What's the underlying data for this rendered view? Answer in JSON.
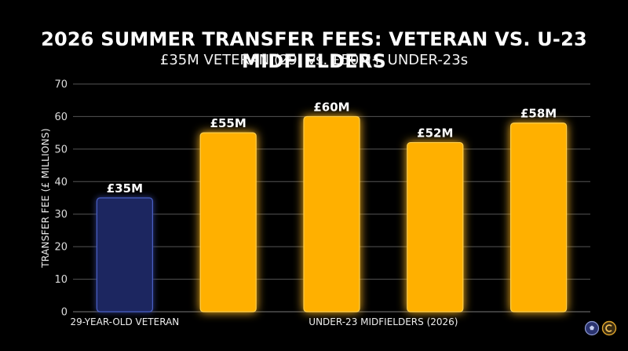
{
  "chart_data": {
    "type": "bar",
    "title": "2026 SUMMER TRANSFER FEES: VETERAN VS. U-23 MIDFIELDERS",
    "subtitle": "£35M VETERAN (29) vs. £50M+ UNDER-23s",
    "ylabel": "TRANSFER FEE (£ MILLIONS)",
    "ylim": [
      0,
      70
    ],
    "yticks": [
      0,
      10,
      20,
      30,
      40,
      50,
      60,
      70
    ],
    "grid": true,
    "values": [
      35,
      55,
      60,
      52,
      58
    ],
    "data_labels": [
      "£35M",
      "£55M",
      "£60M",
      "£52M",
      "£58M"
    ],
    "bar_colors": [
      "#1d2660",
      "#ffb000",
      "#ffb000",
      "#ffb000",
      "#ffb000"
    ],
    "groups": [
      {
        "label": "29-YEAR-OLD VETERAN",
        "indices": [
          0
        ]
      },
      {
        "label": "UNDER-23 MIDFIELDERS (2026)",
        "indices": [
          1,
          2,
          3,
          4
        ]
      }
    ]
  },
  "logos": {
    "left": "football-icon",
    "right": "copyright-icon"
  }
}
